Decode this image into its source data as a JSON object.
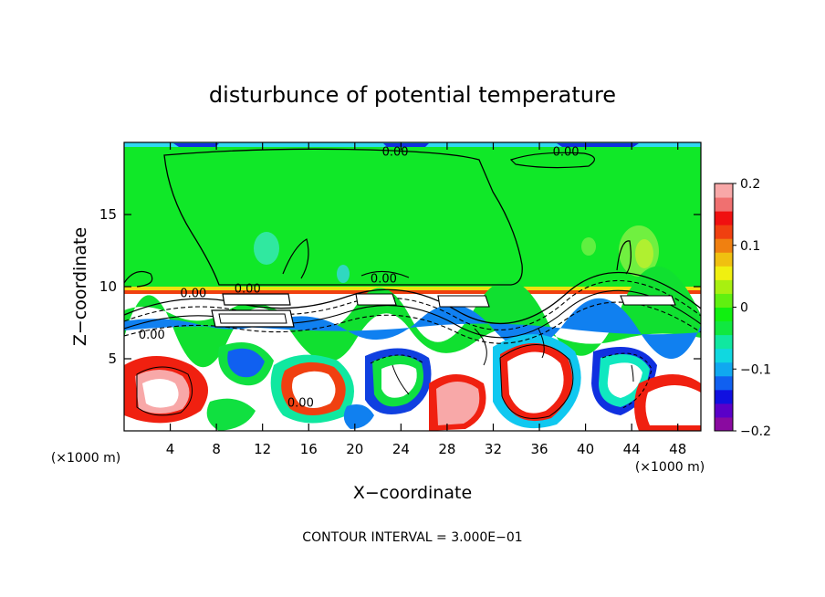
{
  "chart_data": {
    "type": "heatmap",
    "title": "disturbunce of potential temperature",
    "xlabel": "X−coordinate",
    "ylabel": "Z−coordinate",
    "x_unit_left": "(×1000 m)",
    "x_unit_right": "(×1000 m)",
    "x_ticks": [
      4,
      8,
      12,
      16,
      20,
      24,
      28,
      32,
      36,
      40,
      44,
      48
    ],
    "y_ticks": [
      5,
      10,
      15
    ],
    "xlim": [
      0,
      50
    ],
    "ylim": [
      0,
      20
    ],
    "contour_interval_text": "CONTOUR INTERVAL = 3.000E−01",
    "contour_labels": [
      {
        "text": "0.00",
        "x": 23.5,
        "z": 19.4
      },
      {
        "text": "0.00",
        "x": 38.3,
        "z": 19.4
      },
      {
        "text": "0.00",
        "x": 10.7,
        "z": 9.9
      },
      {
        "text": "0.00",
        "x": 6.0,
        "z": 9.6
      },
      {
        "text": "0.00",
        "x": 22.5,
        "z": 10.6
      },
      {
        "text": "0.00",
        "x": 2.4,
        "z": 6.7
      },
      {
        "text": "0.00",
        "x": 15.3,
        "z": 2.0
      }
    ],
    "colorbar": {
      "range": [
        -0.2,
        0.2
      ],
      "tick_labels": [
        "0.2",
        "0.1",
        "0",
        "−0.1",
        "−0.2"
      ],
      "tick_values": [
        0.2,
        0.1,
        0,
        -0.1,
        -0.2
      ],
      "colors": [
        "#8a0aa0",
        "#5a00c8",
        "#1010e0",
        "#1060f0",
        "#10a8f0",
        "#10d8e0",
        "#10e8a0",
        "#10e840",
        "#10f010",
        "#60f010",
        "#a8f010",
        "#f0f010",
        "#f0c010",
        "#f08010",
        "#f04010",
        "#f01010",
        "#f07070",
        "#f8a8a8"
      ]
    }
  }
}
